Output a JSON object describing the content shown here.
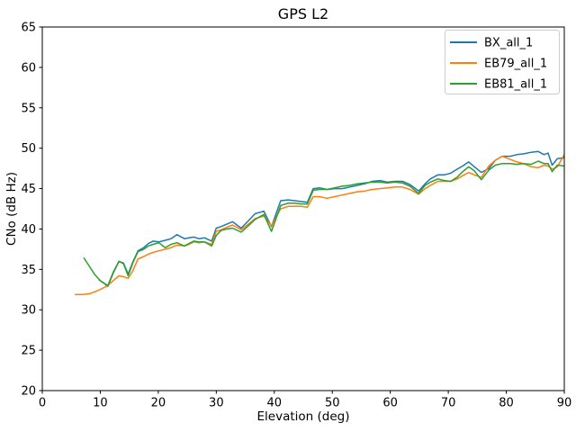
{
  "title": "GPS L2",
  "chart_data": {
    "type": "line",
    "title": "GPS L2",
    "xlabel": "Elevation (deg)",
    "ylabel": "CNo (dB Hz)",
    "xlim": [
      0,
      90
    ],
    "ylim": [
      20,
      65
    ],
    "xticks": [
      0,
      10,
      20,
      30,
      40,
      50,
      60,
      70,
      80,
      90
    ],
    "yticks": [
      20,
      25,
      30,
      35,
      40,
      45,
      50,
      55,
      60,
      65
    ],
    "grid": false,
    "legend_position": "upper right",
    "legend_border_color": "#cccccc",
    "background_color": "#ffffff",
    "series": [
      {
        "name": "BX_all_1",
        "color": "#1f77b4",
        "x": [
          9.8,
          10.6,
          11.3,
          12.2,
          13.2,
          14,
          14.8,
          15.6,
          16.5,
          17.5,
          18.3,
          19.1,
          20.1,
          21.2,
          22.2,
          23.2,
          24.5,
          25.3,
          26.1,
          27,
          28,
          29.2,
          30,
          30.8,
          31.8,
          32.8,
          34.3,
          35.5,
          36.7,
          38.2,
          39.5,
          41.1,
          42.4,
          43.5,
          44.6,
          45.7,
          46.7,
          47.8,
          49.1,
          50.4,
          51.7,
          53,
          54.3,
          55.6,
          56.9,
          58.2,
          59.5,
          60.8,
          62.1,
          63.4,
          64.9,
          66,
          66.9,
          68.2,
          69.3,
          70.4,
          71.5,
          72.5,
          73.5,
          74.5,
          75.7,
          77,
          78.1,
          79.3,
          80.7,
          81.8,
          82.9,
          84.3,
          85.5,
          86.5,
          87.2,
          87.9,
          88.8,
          90
        ],
        "y": [
          33.7,
          33.3,
          32.9,
          34.5,
          36.0,
          35.8,
          34.4,
          35.9,
          37.3,
          37.7,
          38.2,
          38.5,
          38.4,
          38.6,
          38.8,
          39.3,
          38.8,
          38.9,
          39.0,
          38.8,
          38.9,
          38.5,
          40.1,
          40.3,
          40.6,
          40.9,
          40.1,
          41.0,
          41.9,
          42.2,
          40.3,
          43.5,
          43.6,
          43.5,
          43.4,
          43.3,
          45.0,
          45.1,
          44.9,
          45.0,
          45.0,
          45.2,
          45.4,
          45.6,
          45.9,
          46.0,
          45.8,
          45.9,
          45.9,
          45.5,
          44.7,
          45.6,
          46.2,
          46.7,
          46.7,
          46.9,
          47.4,
          47.8,
          48.3,
          47.7,
          47.0,
          47.5,
          48.5,
          49.0,
          49.0,
          49.2,
          49.3,
          49.5,
          49.6,
          49.2,
          49.4,
          47.9,
          48.7,
          48.8
        ]
      },
      {
        "name": "EB79_all_1",
        "color": "#ff7f0e",
        "x": [
          5.7,
          7,
          8.2,
          9.3,
          10.2,
          11.3,
          12.2,
          13.2,
          14,
          14.8,
          15.6,
          16.5,
          17.5,
          18.3,
          19.1,
          20.1,
          21.2,
          22.2,
          23.2,
          24.5,
          25.3,
          26.1,
          27,
          28,
          29.2,
          30,
          30.8,
          31.8,
          32.8,
          34.3,
          35.5,
          36.7,
          38.2,
          39.5,
          41.1,
          42.4,
          43.5,
          44.6,
          45.7,
          46.7,
          47.8,
          49.1,
          50.4,
          51.7,
          53,
          54.3,
          55.6,
          56.9,
          58.2,
          59.5,
          60.8,
          62.1,
          63.4,
          64.9,
          66,
          66.9,
          68.2,
          69.3,
          70.4,
          71.5,
          72.5,
          73.5,
          74.5,
          75.7,
          77,
          78.1,
          79.3,
          80.7,
          81.8,
          82.9,
          84.3,
          85.5,
          86.5,
          87.2,
          87.9,
          88.8,
          90
        ],
        "y": [
          31.9,
          31.9,
          32.0,
          32.3,
          32.6,
          33.0,
          33.6,
          34.2,
          34.1,
          33.9,
          34.8,
          36.3,
          36.6,
          36.9,
          37.1,
          37.3,
          37.5,
          37.7,
          38.0,
          37.9,
          38.1,
          38.4,
          38.3,
          38.4,
          38.1,
          39.7,
          39.9,
          40.2,
          40.5,
          39.9,
          40.6,
          41.3,
          41.6,
          40.4,
          42.5,
          42.8,
          42.8,
          42.8,
          42.7,
          44.0,
          44.0,
          43.8,
          44.0,
          44.2,
          44.4,
          44.6,
          44.7,
          44.9,
          45.0,
          45.1,
          45.2,
          45.2,
          44.9,
          44.3,
          45.0,
          45.4,
          45.9,
          45.9,
          45.9,
          46.2,
          46.6,
          47.0,
          46.7,
          46.4,
          47.8,
          48.5,
          49.0,
          48.6,
          48.3,
          48.1,
          47.7,
          47.6,
          47.9,
          47.8,
          47.4,
          47.7,
          49.2
        ]
      },
      {
        "name": "EB81_all_1",
        "color": "#2ca02c",
        "x": [
          7.2,
          8.2,
          9,
          10,
          11.3,
          12.2,
          13.2,
          14,
          14.8,
          15.6,
          16.5,
          17.5,
          18.3,
          19.1,
          20.1,
          21.2,
          22.2,
          23.2,
          24.5,
          25.3,
          26.1,
          27,
          28,
          29.2,
          30,
          30.8,
          31.8,
          32.8,
          34.3,
          35.5,
          36.7,
          38.2,
          39.5,
          41.1,
          42.4,
          43.5,
          44.6,
          45.7,
          46.7,
          47.8,
          49.1,
          50.4,
          51.7,
          53,
          54.3,
          55.6,
          56.9,
          58.2,
          59.5,
          60.8,
          62.1,
          63.4,
          64.9,
          66,
          66.9,
          68.2,
          69.3,
          70.4,
          71.5,
          72.5,
          73.5,
          74.5,
          75.7,
          77,
          78.1,
          79.3,
          80.7,
          81.8,
          82.9,
          84.3,
          85.5,
          86.5,
          87.2,
          87.9,
          88.8,
          90
        ],
        "y": [
          36.4,
          35.3,
          34.4,
          33.6,
          33.0,
          34.6,
          36.0,
          35.7,
          34.2,
          35.8,
          37.2,
          37.5,
          37.9,
          38.1,
          38.3,
          37.7,
          38.1,
          38.3,
          37.9,
          38.2,
          38.5,
          38.4,
          38.4,
          37.9,
          39.2,
          39.8,
          40.0,
          40.1,
          39.6,
          40.4,
          41.2,
          41.8,
          39.7,
          42.9,
          43.2,
          43.2,
          43.1,
          43.1,
          44.8,
          44.9,
          44.9,
          45.1,
          45.3,
          45.4,
          45.6,
          45.7,
          45.8,
          45.8,
          45.7,
          45.8,
          45.7,
          45.3,
          44.4,
          45.4,
          45.8,
          46.2,
          46.0,
          45.9,
          46.4,
          47.1,
          47.7,
          47.2,
          46.1,
          47.3,
          47.9,
          48.1,
          48.1,
          48.0,
          48.1,
          48.0,
          48.4,
          48.1,
          48.1,
          47.1,
          47.9,
          47.8
        ]
      }
    ]
  }
}
